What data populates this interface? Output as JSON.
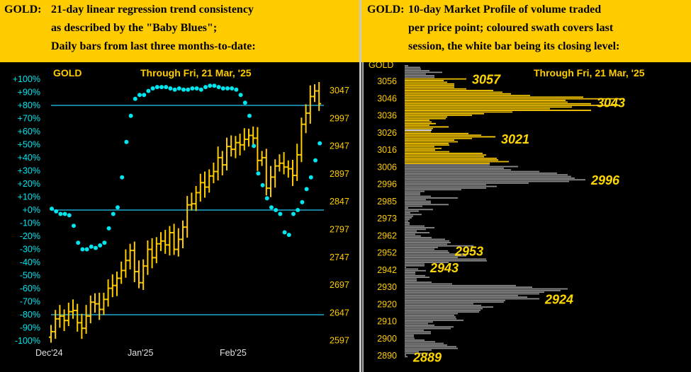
{
  "left_panel": {
    "header": {
      "line1_prefix": "GOLD:",
      "line1": "21-day linear regression trend consistency",
      "line2": "as described by the \"Baby Blues\";",
      "line3": "Daily bars from last three months-to-date:"
    }
  },
  "right_panel": {
    "header": {
      "line1_prefix": "GOLD:",
      "line1": "10-day Market Profile of volume traded",
      "line2": "per price point; coloured swath covers last",
      "line3": "session, the white bar being its closing level:"
    }
  },
  "colors": {
    "header_bg": "#ffcc00",
    "price": "#ffcc00",
    "baby_blues": "#00e5ee",
    "ref_line": "#1fa8d0",
    "profile_gray": "#8a8a8a",
    "profile_close": "#e8e8e8"
  },
  "chart_data": [
    {
      "type": "line",
      "title": "GOLD",
      "subtitle": "Through Fri, 21 Mar, '25",
      "x_tick_labels": [
        "Dec'24",
        "Jan'25",
        "Feb'25"
      ],
      "left_axis": {
        "label_values": [
          "+100%",
          "+90%",
          "+80%",
          "+70%",
          "+60%",
          "+50%",
          "+40%",
          "+30%",
          "+20%",
          "+10%",
          "+0%",
          "-10%",
          "-20%",
          "-30%",
          "-40%",
          "-50%",
          "-60%",
          "-70%",
          "-80%",
          "-90%",
          "-100%"
        ],
        "ylim": [
          -100,
          100
        ]
      },
      "right_axis": {
        "label_values": [
          "3047",
          "2997",
          "2947",
          "2897",
          "2847",
          "2797",
          "2747",
          "2697",
          "2647",
          "2597"
        ],
        "ylim": [
          2585,
          3075
        ]
      },
      "reference_lines_pct": [
        80,
        0,
        -80
      ],
      "baby_blues_pct": [
        1,
        -1,
        -3,
        -3,
        -4,
        -12,
        -25,
        -30,
        -30,
        -28,
        -29,
        -27,
        -25,
        -14,
        -3,
        2,
        25,
        52,
        72,
        85,
        88,
        88,
        91,
        93,
        94,
        94,
        94,
        93,
        92,
        93,
        92,
        92,
        93,
        93,
        92,
        94,
        95,
        95,
        94,
        93,
        93,
        93,
        92,
        88,
        82,
        72,
        49,
        28,
        19,
        9,
        2,
        0,
        -3,
        -17,
        -19,
        -3,
        0,
        6,
        16,
        25,
        38,
        51
      ],
      "daily_close": [
        2612,
        2635,
        2640,
        2632,
        2648,
        2650,
        2628,
        2618,
        2640,
        2665,
        2662,
        2652,
        2670,
        2690,
        2695,
        2708,
        2722,
        2740,
        2758,
        2720,
        2700,
        2730,
        2760,
        2745,
        2770,
        2775,
        2768,
        2790,
        2760,
        2778,
        2800,
        2840,
        2842,
        2862,
        2880,
        2872,
        2892,
        2900,
        2925,
        2912,
        2945,
        2940,
        2952,
        2948,
        2958,
        2965,
        2960,
        2920,
        2925,
        2870,
        2890,
        2910,
        2915,
        2908,
        2905,
        2893,
        2930,
        2985,
        3005,
        3035,
        3045,
        3022
      ]
    },
    {
      "type": "bar",
      "orientation": "horizontal",
      "title": "GOLD",
      "subtitle": "Through Fri, 21 Mar, '25",
      "y_tick_labels": [
        "3056",
        "3046",
        "3036",
        "3026",
        "3016",
        "3006",
        "2996",
        "2985",
        "2973",
        "2962",
        "2952",
        "2942",
        "2930",
        "2920",
        "2910",
        "2900",
        "2890"
      ],
      "top_price": 3065,
      "price_step": 1,
      "volumes": [
        5,
        22,
        23,
        35,
        53,
        30,
        42,
        42,
        87,
        55,
        60,
        70,
        70,
        70,
        87,
        125,
        138,
        150,
        177,
        252,
        310,
        227,
        230,
        263,
        302,
        236,
        205,
        263,
        152,
        112,
        95,
        60,
        58,
        35,
        38,
        44,
        35,
        62,
        40,
        38,
        37,
        90,
        108,
        128,
        95,
        70,
        75,
        62,
        63,
        42,
        52,
        43,
        63,
        110,
        115,
        112,
        130,
        132,
        147,
        120,
        120,
        160,
        140,
        150,
        190,
        215,
        230,
        235,
        240,
        255,
        232,
        175,
        115,
        130,
        115,
        80,
        28,
        22,
        22,
        37,
        75,
        30,
        37,
        37,
        62,
        25,
        5,
        40,
        20,
        8,
        24,
        12,
        10,
        7,
        5,
        7,
        7,
        28,
        42,
        30,
        17,
        35,
        15,
        23,
        38,
        57,
        63,
        65,
        60,
        97,
        47,
        42,
        61,
        63,
        90,
        87,
        75,
        115,
        116,
        62,
        28,
        28,
        2,
        19,
        30,
        15,
        15,
        29,
        35,
        17,
        17,
        38,
        67,
        157,
        180,
        230,
        220,
        197,
        190,
        160,
        173,
        190,
        142,
        140,
        97,
        108,
        125,
        110,
        107,
        105,
        75,
        70,
        72,
        73,
        83,
        40,
        33,
        42,
        69,
        65,
        27,
        37,
        37,
        13,
        13,
        14,
        28,
        43,
        55,
        60,
        73,
        75,
        38,
        20,
        33,
        2,
        4
      ],
      "session_swath": [
        3006,
        3057
      ],
      "close_price": 3026,
      "callouts": [
        "3057",
        "3043",
        "3021",
        "2996",
        "2953",
        "2943",
        "2924",
        "2889"
      ]
    }
  ]
}
